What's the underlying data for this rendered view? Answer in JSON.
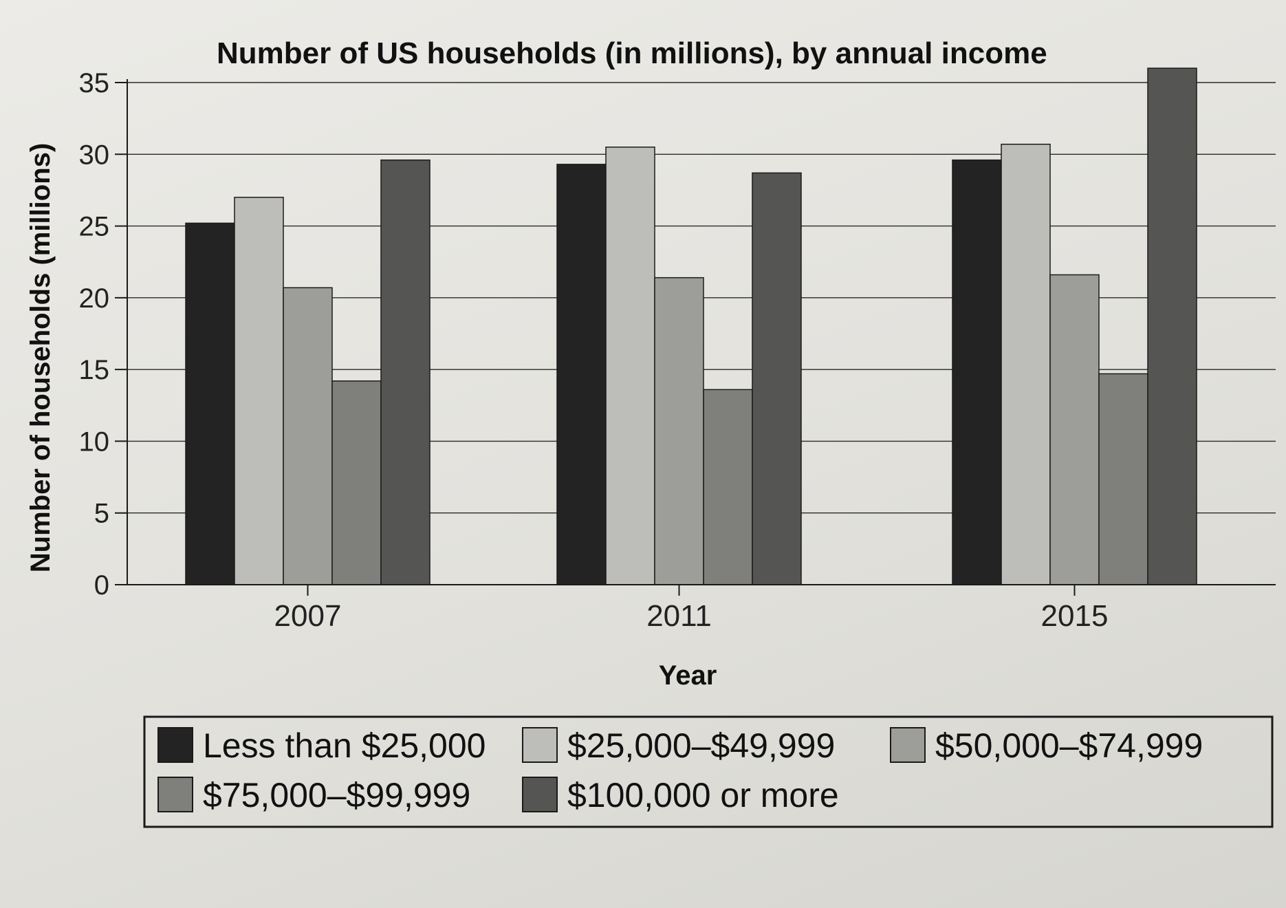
{
  "chart_data": {
    "type": "bar",
    "title": "Number of US households (in millions), by annual income",
    "xlabel": "Year",
    "ylabel": "Number of households (millions)",
    "ylim": [
      0,
      35
    ],
    "yticks": [
      0,
      5,
      10,
      15,
      20,
      25,
      30,
      35
    ],
    "grid": true,
    "legend_position": "bottom",
    "categories": [
      "2007",
      "2011",
      "2015"
    ],
    "series": [
      {
        "name": "Less than $25,000",
        "values": [
          25.2,
          29.3,
          29.6
        ],
        "color": "#232323"
      },
      {
        "name": "$25,000–$49,999",
        "values": [
          27.0,
          30.5,
          30.7
        ],
        "color": "#bdbdb9"
      },
      {
        "name": "$50,000–$74,999",
        "values": [
          20.7,
          21.4,
          21.6
        ],
        "color": "#9d9d99"
      },
      {
        "name": "$75,000–$99,999",
        "values": [
          14.2,
          13.6,
          14.7
        ],
        "color": "#7f7f7c"
      },
      {
        "name": "$100,000 or more",
        "values": [
          29.6,
          28.7,
          36.0
        ],
        "color": "#555553"
      }
    ]
  }
}
